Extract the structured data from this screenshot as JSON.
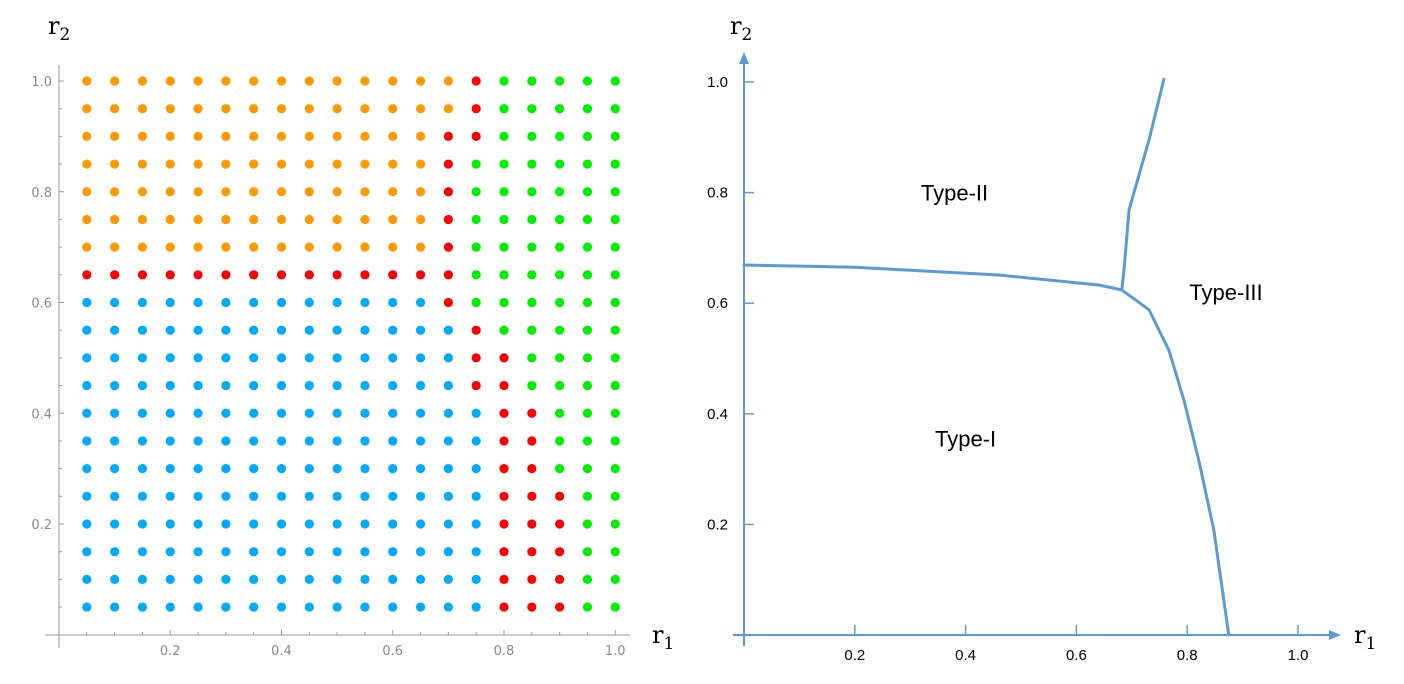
{
  "chart_data": [
    {
      "type": "scatter",
      "xlabel": "r",
      "xlabel_sub": "1",
      "ylabel": "r",
      "ylabel_sub": "2",
      "xlim": [
        0,
        1.0
      ],
      "ylim": [
        0,
        1.0
      ],
      "grid": false,
      "xticks": [
        "0.2",
        "0.4",
        "0.6",
        "0.8",
        "1.0"
      ],
      "yticks": [
        "0.2",
        "0.4",
        "0.6",
        "0.8",
        "1.0"
      ],
      "x_values": [
        0.05,
        0.1,
        0.15,
        0.2,
        0.25,
        0.3,
        0.35,
        0.4,
        0.45,
        0.5,
        0.55,
        0.6,
        0.65,
        0.7,
        0.75,
        0.8,
        0.85,
        0.9,
        0.95,
        1.0
      ],
      "class_colors": {
        "O": "#ff9900",
        "R": "#ff0000",
        "G": "#00ee00",
        "B": "#00aaff"
      },
      "rows": [
        {
          "y": 1.0,
          "classes": "OOOOOOOOOOOOOORGGGGG"
        },
        {
          "y": 0.95,
          "classes": "OOOOOOOOOOOOOORGGGGG"
        },
        {
          "y": 0.9,
          "classes": "OOOOOOOOOOOOORRGGGGG"
        },
        {
          "y": 0.85,
          "classes": "OOOOOOOOOOOOORGGGGGG"
        },
        {
          "y": 0.8,
          "classes": "OOOOOOOOOOOOORGGGGGG"
        },
        {
          "y": 0.75,
          "classes": "OOOOOOOOOOOOORGGGGGG"
        },
        {
          "y": 0.7,
          "classes": "OOOOOOOOOOOOORGGGGGG"
        },
        {
          "y": 0.65,
          "classes": "RRRRRRRRRRRRRRGGGGGG"
        },
        {
          "y": 0.6,
          "classes": "BBBBBBBBBBBBBRGGGGGG"
        },
        {
          "y": 0.55,
          "classes": "BBBBBBBBBBBBBBRGGGGG"
        },
        {
          "y": 0.5,
          "classes": "BBBBBBBBBBBBBBRRGGGG"
        },
        {
          "y": 0.45,
          "classes": "BBBBBBBBBBBBBBRRGGGG"
        },
        {
          "y": 0.4,
          "classes": "BBBBBBBBBBBBBBBRRGGG"
        },
        {
          "y": 0.35,
          "classes": "BBBBBBBBBBBBBBBRRGGG"
        },
        {
          "y": 0.3,
          "classes": "BBBBBBBBBBBBBBBRRGGG"
        },
        {
          "y": 0.25,
          "classes": "BBBBBBBBBBBBBBBRRRGG"
        },
        {
          "y": 0.2,
          "classes": "BBBBBBBBBBBBBBBRRRGG"
        },
        {
          "y": 0.15,
          "classes": "BBBBBBBBBBBBBBBRRRGG"
        },
        {
          "y": 0.1,
          "classes": "BBBBBBBBBBBBBBBRRRGG"
        },
        {
          "y": 0.05,
          "classes": "BBBBBBBBBBBBBBBRRRGG"
        }
      ]
    },
    {
      "type": "line",
      "xlabel": "r",
      "xlabel_sub": "1",
      "ylabel": "r",
      "ylabel_sub": "2",
      "xlim": [
        0,
        1.05
      ],
      "ylim": [
        0,
        1.05
      ],
      "grid": false,
      "xticks": [
        "0.2",
        "0.4",
        "0.6",
        "0.8",
        "1.0"
      ],
      "yticks": [
        "0.2",
        "0.4",
        "0.6",
        "0.8",
        "1.0"
      ],
      "line_color": "#5b9bd5",
      "series": [
        {
          "points": [
            [
              0,
              0.669
            ],
            [
              0.2,
              0.665
            ],
            [
              0.46,
              0.651
            ],
            [
              0.64,
              0.633
            ],
            [
              0.682,
              0.624
            ]
          ]
        },
        {
          "points": [
            [
              0.682,
              0.624
            ],
            [
              0.686,
              0.66
            ],
            [
              0.695,
              0.768
            ],
            [
              0.713,
              0.832
            ],
            [
              0.731,
              0.895
            ],
            [
              0.758,
              1.005
            ]
          ]
        },
        {
          "points": [
            [
              0.682,
              0.624
            ],
            [
              0.731,
              0.588
            ],
            [
              0.767,
              0.515
            ],
            [
              0.794,
              0.425
            ],
            [
              0.821,
              0.316
            ],
            [
              0.848,
              0.19
            ],
            [
              0.875,
              0
            ]
          ]
        }
      ],
      "annotations": [
        {
          "text": "Type-II",
          "x": 0.38,
          "y": 0.8
        },
        {
          "text": "Type-III",
          "x": 0.87,
          "y": 0.62
        },
        {
          "text": "Type-I",
          "x": 0.4,
          "y": 0.355
        }
      ]
    }
  ]
}
